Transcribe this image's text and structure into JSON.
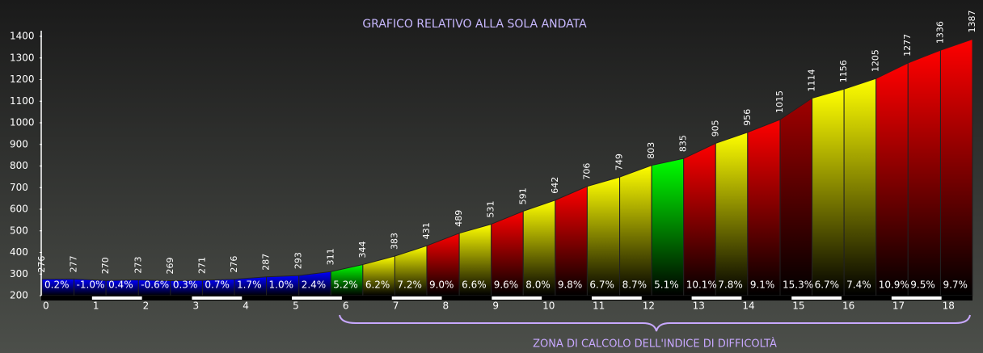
{
  "chart_data": {
    "type": "area",
    "title": "GRAFICO RELATIVO ALLA SOLA ANDATA",
    "annotation": "ZONA DI CALCOLO DELL'INDICE DI DIFFICOLTÀ",
    "x": [
      0,
      0.64,
      1.28,
      1.93,
      2.57,
      3.21,
      3.85,
      4.49,
      5.14,
      5.78,
      6.42,
      7.06,
      7.7,
      8.35,
      8.99,
      9.63,
      10.27,
      10.91,
      11.56,
      12.2,
      12.84,
      13.48,
      14.12,
      14.77,
      15.41,
      16.05,
      16.69,
      17.33,
      17.98,
      18.62
    ],
    "values": [
      276,
      277,
      270,
      273,
      269,
      271,
      276,
      287,
      293,
      311,
      344,
      383,
      431,
      489,
      531,
      591,
      642,
      706,
      749,
      803,
      835,
      905,
      956,
      1015,
      1114,
      1156,
      1205,
      1277,
      1336,
      1387
    ],
    "segments": {
      "values": [
        0.2,
        -1.0,
        0.4,
        -0.6,
        0.3,
        0.7,
        1.7,
        1.0,
        2.4,
        5.2,
        6.2,
        7.2,
        9.0,
        6.6,
        9.6,
        8.0,
        9.8,
        6.7,
        8.7,
        5.1,
        10.1,
        7.8,
        9.1,
        15.3,
        6.7,
        7.4,
        10.9,
        9.5,
        9.7
      ],
      "value_labels": [
        "0.2%",
        "-1.0%",
        "0.4%",
        "-0.6%",
        "0.3%",
        "0.7%",
        "1.7%",
        "1.0%",
        "2.4%",
        "5.2%",
        "6.2%",
        "7.2%",
        "9.0%",
        "6.6%",
        "9.6%",
        "8.0%",
        "9.8%",
        "6.7%",
        "8.7%",
        "5.1%",
        "10.1%",
        "7.8%",
        "9.1%",
        "15.3%",
        "6.7%",
        "7.4%",
        "10.9%",
        "9.5%",
        "9.7%"
      ],
      "colors": [
        "#0000ff",
        "#0000ff",
        "#0000ff",
        "#0000ff",
        "#0000ff",
        "#0000ff",
        "#0000ff",
        "#0000ff",
        "#0000ff",
        "#00ff00",
        "#ffff00",
        "#ffff00",
        "#ff0000",
        "#ffff00",
        "#ff0000",
        "#ffff00",
        "#ff0000",
        "#ffff00",
        "#ffff00",
        "#00ff00",
        "#ff0000",
        "#ffff00",
        "#ff0000",
        "#a00000",
        "#ffff00",
        "#ffff00",
        "#ff0000",
        "#ff0000",
        "#ff0000"
      ]
    },
    "xlim": [
      0,
      18.62
    ],
    "xticks": [
      0,
      1,
      2,
      3,
      4,
      5,
      6,
      7,
      8,
      9,
      10,
      11,
      12,
      13,
      14,
      15,
      16,
      17,
      18
    ],
    "ylim": [
      200,
      1400
    ],
    "yticks": [
      200,
      300,
      400,
      500,
      600,
      700,
      800,
      900,
      1000,
      1100,
      1200,
      1300,
      1400
    ]
  }
}
